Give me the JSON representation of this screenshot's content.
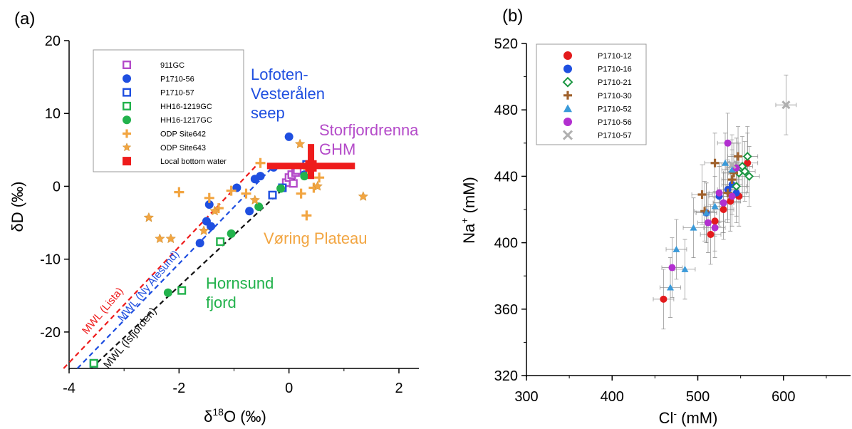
{
  "panel_a": {
    "label": "(a)",
    "xlabel_delta": "δ",
    "xlabel_sup": "18",
    "xlabel_rest": "O (‰)",
    "ylabel": "δD (‰)",
    "legend": [
      {
        "name": "911GC",
        "marker": "square-open",
        "color": "#b44bc9"
      },
      {
        "name": "P1710-56",
        "marker": "circle",
        "color": "#1f4fe0"
      },
      {
        "name": "P1710-57",
        "marker": "square-open",
        "color": "#1f4fe0"
      },
      {
        "name": "HH16-1219GC",
        "marker": "square-open",
        "color": "#22b24c"
      },
      {
        "name": "HH16-1217GC",
        "marker": "circle",
        "color": "#22b24c"
      },
      {
        "name": "ODP Site642",
        "marker": "plus",
        "color": "#f2a541"
      },
      {
        "name": "ODP Site643",
        "marker": "star",
        "color": "#f2a541"
      },
      {
        "name": "Local bottom water",
        "marker": "square-filled",
        "color": "#ee1c1c"
      }
    ],
    "annotations": [
      {
        "lines": [
          "Lofoten-",
          "Vesterålen",
          "seep"
        ],
        "color": "#1f4fe0"
      },
      {
        "lines": [
          "Storfjordrenna",
          "GHM"
        ],
        "color": "#b44bc9"
      },
      {
        "lines": [
          "Vøring Plateau"
        ],
        "color": "#f2a541"
      },
      {
        "lines": [
          "Hornsund",
          "fjord"
        ],
        "color": "#22b24c"
      }
    ],
    "mwl_labels": [
      {
        "text": "MWL (Lista)",
        "color": "#ee1c1c"
      },
      {
        "text": "MWL (Ny Alesund)",
        "color": "#1f4fe0"
      },
      {
        "text": "MWL (Isfjorden)",
        "color": "#111111"
      }
    ]
  },
  "panel_b": {
    "label": "(b)",
    "xlabel_main": "Cl",
    "xlabel_sup": "-",
    "xlabel_unit": " (mM)",
    "ylabel_main": "Na",
    "ylabel_sup": "+",
    "ylabel_unit": " (mM)",
    "legend": [
      {
        "name": "P1710-12",
        "marker": "circle",
        "color": "#e31a1c"
      },
      {
        "name": "P1710-16",
        "marker": "circle",
        "color": "#1f4fe0"
      },
      {
        "name": "P1710-21",
        "marker": "diamond-open",
        "color": "#1a9641"
      },
      {
        "name": "P1710-30",
        "marker": "plus",
        "color": "#a0622d"
      },
      {
        "name": "P1710-52",
        "marker": "triangle",
        "color": "#3a9ad9"
      },
      {
        "name": "P1710-56",
        "marker": "circle",
        "color": "#b22fd0"
      },
      {
        "name": "P1710-57",
        "marker": "cross",
        "color": "#b0b0b0"
      }
    ]
  },
  "chart_data": [
    {
      "type": "scatter",
      "title": "(a)",
      "xlabel": "δ18O (‰)",
      "ylabel": "δD (‰)",
      "xlim": [
        -4,
        2
      ],
      "ylim": [
        -25,
        20
      ],
      "xticks": [
        -4,
        -2,
        0,
        2
      ],
      "yticks": [
        -20,
        -10,
        0,
        10,
        20
      ],
      "grid": false,
      "legend_position": "top-left inside",
      "series": [
        {
          "name": "911GC",
          "points": [
            [
              -0.05,
              0.5
            ],
            [
              0.0,
              1.2
            ],
            [
              0.05,
              1.6
            ],
            [
              0.08,
              0.4
            ],
            [
              0.12,
              1.9
            ],
            [
              0.15,
              2.2
            ]
          ]
        },
        {
          "name": "P1710-56",
          "points": [
            [
              -1.45,
              -2.5
            ],
            [
              -1.5,
              -4.8
            ],
            [
              -1.42,
              -5.5
            ],
            [
              -1.62,
              -7.8
            ],
            [
              -0.95,
              -0.2
            ],
            [
              -0.72,
              -3.4
            ],
            [
              -0.62,
              1.0
            ],
            [
              -0.52,
              1.4
            ],
            [
              -0.28,
              2.6
            ],
            [
              0.0,
              6.8
            ],
            [
              0.28,
              1.6
            ]
          ]
        },
        {
          "name": "P1710-57",
          "points": [
            [
              -3.55,
              -24.3
            ],
            [
              -0.3,
              -1.2
            ],
            [
              -0.12,
              -0.2
            ],
            [
              0.32,
              3.0
            ]
          ]
        },
        {
          "name": "HH16-1219GC",
          "points": [
            [
              -3.55,
              -24.3
            ],
            [
              -1.95,
              -14.3
            ],
            [
              -1.25,
              -7.6
            ]
          ]
        },
        {
          "name": "HH16-1217GC",
          "points": [
            [
              -2.2,
              -14.6
            ],
            [
              -1.05,
              -6.5
            ],
            [
              -0.55,
              -2.8
            ],
            [
              -0.15,
              -0.3
            ],
            [
              0.28,
              1.4
            ]
          ]
        },
        {
          "name": "ODP Site642",
          "points": [
            [
              -2.0,
              -0.8
            ],
            [
              -1.45,
              -1.6
            ],
            [
              -1.28,
              -3.0
            ],
            [
              -1.05,
              -0.6
            ],
            [
              -0.78,
              -1.0
            ],
            [
              -0.52,
              3.2
            ],
            [
              0.22,
              -1.0
            ],
            [
              0.32,
              -4.0
            ],
            [
              0.35,
              2.4
            ],
            [
              0.55,
              1.2
            ],
            [
              0.45,
              -0.2
            ]
          ]
        },
        {
          "name": "ODP Site643",
          "points": [
            [
              -2.55,
              -4.3
            ],
            [
              -2.35,
              -7.2
            ],
            [
              -2.15,
              -7.2
            ],
            [
              -1.55,
              -6.1
            ],
            [
              -1.35,
              -3.4
            ],
            [
              -0.62,
              -1.9
            ],
            [
              0.2,
              5.8
            ],
            [
              0.52,
              0.0
            ],
            [
              1.35,
              -1.4
            ]
          ]
        },
        {
          "name": "Local bottom water",
          "points": [
            [
              0.4,
              2.8
            ]
          ],
          "x_err": 0.8,
          "y_err_minus": 1.8,
          "y_err_plus": 3.0
        },
        {
          "name": "MWL (Lista)",
          "type": "line",
          "points": [
            [
              -4.1,
              -25.0
            ],
            [
              -0.55,
              3.2
            ]
          ]
        },
        {
          "name": "MWL (Ny Alesund)",
          "type": "line",
          "points": [
            [
              -3.85,
              -25.0
            ],
            [
              -0.25,
              3.0
            ]
          ]
        },
        {
          "name": "MWL (Isfjorden)",
          "type": "line",
          "points": [
            [
              -3.6,
              -25.0
            ],
            [
              0.2,
              1.8
            ]
          ]
        }
      ]
    },
    {
      "type": "scatter",
      "title": "(b)",
      "xlabel": "Cl- (mM)",
      "ylabel": "Na+ (mM)",
      "xlim": [
        300,
        680
      ],
      "ylim": [
        320,
        520
      ],
      "xticks": [
        300,
        400,
        500,
        600
      ],
      "yticks": [
        320,
        360,
        400,
        440,
        480,
        520
      ],
      "grid": false,
      "legend_position": "top-left inside",
      "error_bars": {
        "x": 12,
        "y": 18
      },
      "series": [
        {
          "name": "P1710-12",
          "points": [
            [
              460,
              366
            ],
            [
              515,
              405
            ],
            [
              520,
              413
            ],
            [
              530,
              420
            ],
            [
              538,
              425
            ],
            [
              548,
              428
            ],
            [
              558,
              448
            ]
          ]
        },
        {
          "name": "P1710-16",
          "points": [
            [
              510,
              418
            ],
            [
              525,
              428
            ],
            [
              530,
              424
            ],
            [
              535,
              432
            ],
            [
              540,
              435
            ],
            [
              545,
              430
            ]
          ]
        },
        {
          "name": "P1710-21",
          "points": [
            [
              545,
              434
            ],
            [
              548,
              442
            ],
            [
              552,
              446
            ],
            [
              555,
              443
            ],
            [
              558,
              452
            ],
            [
              560,
              440
            ]
          ]
        },
        {
          "name": "P1710-30",
          "points": [
            [
              505,
              429
            ],
            [
              508,
              419
            ],
            [
              520,
              448
            ],
            [
              535,
              430
            ],
            [
              540,
              438
            ],
            [
              542,
              442
            ],
            [
              547,
              452
            ]
          ]
        },
        {
          "name": "P1710-52",
          "points": [
            [
              468,
              373
            ],
            [
              475,
              396
            ],
            [
              485,
              384
            ],
            [
              495,
              409
            ],
            [
              510,
              418
            ],
            [
              520,
              422
            ],
            [
              532,
              448
            ],
            [
              540,
              444
            ]
          ]
        },
        {
          "name": "P1710-56",
          "points": [
            [
              470,
              385
            ],
            [
              512,
              412
            ],
            [
              520,
              409
            ],
            [
              525,
              430
            ],
            [
              530,
              424
            ],
            [
              535,
              460
            ],
            [
              540,
              428
            ],
            [
              545,
              445
            ]
          ]
        },
        {
          "name": "P1710-57",
          "points": [
            [
              603,
              483
            ],
            [
              540,
              447
            ]
          ]
        }
      ]
    }
  ]
}
